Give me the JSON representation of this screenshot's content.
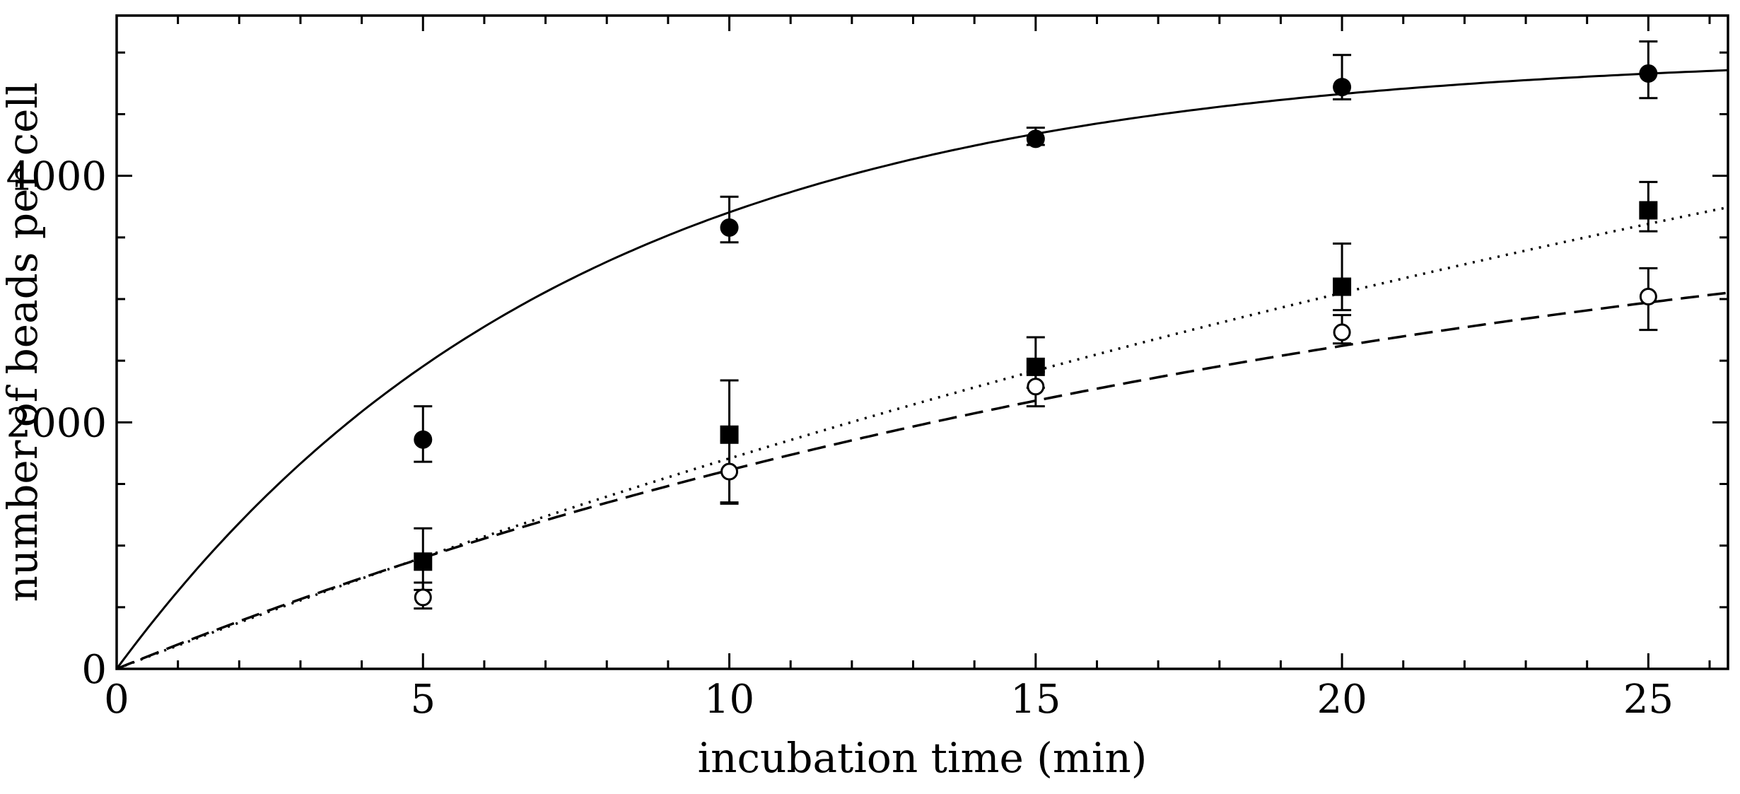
{
  "chart_data": {
    "type": "scatter",
    "title": "",
    "xlabel": "incubation time (min)",
    "ylabel": "number of beads per cell",
    "xlim": [
      0,
      26.3
    ],
    "ylim": [
      0,
      5300
    ],
    "x_ticks": [
      0,
      5,
      10,
      15,
      20,
      25
    ],
    "x_tick_labels": [
      "0",
      "5",
      "10",
      "15",
      "20",
      "25"
    ],
    "y_ticks": [
      0,
      2000,
      4000
    ],
    "y_tick_labels": [
      "0",
      "2000",
      "4000"
    ],
    "x_minor_step": 1,
    "y_minor_step": 1000,
    "grid": false,
    "series": [
      {
        "name": "filled circles",
        "marker": "filled-circle",
        "x": [
          5,
          10,
          15,
          20,
          25
        ],
        "y": [
          1860,
          3580,
          4300,
          4720,
          4830
        ],
        "err_low": [
          180,
          120,
          50,
          100,
          200
        ],
        "err_high": [
          270,
          250,
          90,
          260,
          260
        ]
      },
      {
        "name": "filled squares",
        "marker": "filled-square",
        "x": [
          5,
          10,
          15,
          20,
          25
        ],
        "y": [
          870,
          1900,
          2450,
          3100,
          3720
        ],
        "err_low": [
          230,
          560,
          170,
          190,
          170
        ],
        "err_high": [
          270,
          440,
          240,
          350,
          230
        ]
      },
      {
        "name": "open circles",
        "marker": "open-circle",
        "x": [
          5,
          10,
          15,
          20,
          25
        ],
        "y": [
          580,
          1600,
          2290,
          2730,
          3020
        ],
        "err_low": [
          90,
          250,
          160,
          90,
          270
        ],
        "err_high": [
          120,
          250,
          120,
          140,
          230
        ]
      }
    ],
    "fits": [
      {
        "name": "fit filled circles",
        "style": "solid",
        "function": "saturating-exponential",
        "amplitude": 5000,
        "rate": 0.135
      },
      {
        "name": "fit filled squares",
        "style": "dotted",
        "function": "saturating-exponential",
        "amplitude": 8000,
        "rate": 0.024
      },
      {
        "name": "fit open circles",
        "style": "dashed",
        "function": "saturating-exponential",
        "amplitude": 4300,
        "rate": 0.047
      }
    ]
  }
}
